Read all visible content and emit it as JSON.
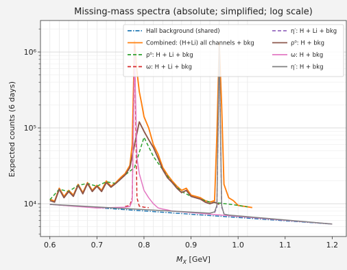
{
  "chart_data": {
    "type": "line",
    "title": "Missing-mass spectra (absolute; simplified; log scale)",
    "xlabel": "M_X [GeV]",
    "ylabel": "Expected counts (6 days)",
    "xlim": [
      0.58,
      1.23
    ],
    "ylim": [
      3700,
      2600000
    ],
    "yscale": "log",
    "grid": true,
    "legend_position": "top-right",
    "x_ticks": [
      0.6,
      0.7,
      0.8,
      0.9,
      1.0,
      1.1,
      1.2
    ],
    "x_tick_labels": [
      "0.6",
      "0.7",
      "0.8",
      "0.9",
      "1.0",
      "1.1",
      "1.2"
    ],
    "y_ticks": [
      10000,
      100000,
      1000000
    ],
    "y_tick_labels": [
      "10⁴",
      "10⁵",
      "10⁶"
    ],
    "x_grid": [
      0.6,
      0.62,
      0.64,
      0.66,
      0.68,
      0.7,
      0.72,
      0.74,
      0.76,
      0.78,
      0.8,
      0.82,
      0.84,
      0.86,
      0.88,
      0.9,
      0.92,
      0.94,
      0.96,
      0.98,
      1.0,
      1.02
    ],
    "series": [
      {
        "name": "Hall background (shared)",
        "color": "#1f77b4",
        "dash": "6,2,1.5,2",
        "x": [
          0.6,
          1.2
        ],
        "y": [
          9800,
          5400
        ]
      },
      {
        "name": "Combined: (H+Li) all channels + bkg",
        "color": "#ff7f0e",
        "dash": "",
        "x": [
          0.6,
          0.61,
          0.62,
          0.63,
          0.64,
          0.65,
          0.66,
          0.67,
          0.68,
          0.69,
          0.7,
          0.71,
          0.72,
          0.73,
          0.74,
          0.75,
          0.76,
          0.77,
          0.775,
          0.78,
          0.785,
          0.79,
          0.795,
          0.8,
          0.81,
          0.82,
          0.83,
          0.84,
          0.85,
          0.86,
          0.87,
          0.88,
          0.89,
          0.9,
          0.91,
          0.92,
          0.93,
          0.94,
          0.95,
          0.955,
          0.96,
          0.965,
          0.97,
          0.98,
          0.99,
          1.0,
          1.01,
          1.02,
          1.03
        ],
        "y": [
          11500,
          10800,
          16000,
          12500,
          15000,
          13000,
          18000,
          14000,
          19000,
          15000,
          17500,
          15000,
          20000,
          17000,
          19000,
          22000,
          25000,
          32000,
          60000,
          1400000,
          560000,
          300000,
          210000,
          140000,
          100000,
          60000,
          45000,
          30000,
          24000,
          20000,
          17000,
          15000,
          16000,
          13000,
          12500,
          12000,
          11000,
          10500,
          11000,
          80000,
          1300000,
          200000,
          18000,
          12000,
          11000,
          9500,
          9300,
          9100,
          8900
        ]
      },
      {
        "name": "ρ⁰: H + Li + bkg",
        "color": "#2ca02c",
        "dash": "5,3",
        "x": [
          0.6,
          0.62,
          0.64,
          0.66,
          0.68,
          0.7,
          0.72,
          0.74,
          0.76,
          0.78,
          0.8,
          0.82,
          0.84,
          0.86,
          0.88,
          0.9,
          0.92,
          0.94,
          0.96,
          0.98,
          1.0,
          1.02
        ],
        "y": [
          11300,
          15500,
          14500,
          17500,
          18500,
          17000,
          19500,
          18500,
          24000,
          30000,
          75000,
          42000,
          28000,
          19000,
          14500,
          12500,
          11500,
          10500,
          10200,
          9900,
          9500,
          9100
        ]
      },
      {
        "name": "ω: H + Li + bkg",
        "color": "#d62728",
        "dash": "5,3",
        "x": [
          0.76,
          0.77,
          0.775,
          0.78,
          0.785,
          0.79,
          0.8,
          0.81
        ],
        "y": [
          9200,
          9500,
          12000,
          1200000,
          12000,
          9300,
          9000,
          8900
        ]
      },
      {
        "name": "η′: H + Li + bkg",
        "color": "#9467bd",
        "dash": "5,3",
        "x": [
          0.95,
          0.955,
          0.96,
          0.965,
          0.97
        ],
        "y": [
          7600,
          9000,
          1100000,
          9000,
          7500
        ]
      },
      {
        "name": "ρ⁰: H + bkg",
        "color": "#8c564b",
        "dash": "",
        "x": [
          0.6,
          0.61,
          0.62,
          0.63,
          0.64,
          0.65,
          0.66,
          0.67,
          0.68,
          0.69,
          0.7,
          0.71,
          0.72,
          0.73,
          0.74,
          0.75,
          0.76,
          0.77,
          0.78,
          0.79,
          0.8,
          0.81,
          0.82,
          0.83,
          0.84,
          0.85,
          0.86,
          0.87,
          0.88,
          0.89,
          0.9,
          0.91,
          0.92,
          0.93,
          0.94,
          0.95,
          0.96
        ],
        "y": [
          11000,
          10500,
          15500,
          12000,
          14500,
          12500,
          17500,
          13500,
          18500,
          14500,
          17000,
          14500,
          19000,
          16500,
          18500,
          21000,
          24000,
          30000,
          60000,
          120000,
          90000,
          70000,
          55000,
          40000,
          28000,
          22000,
          19000,
          16000,
          14000,
          15000,
          12500,
          12000,
          11500,
          10500,
          10000,
          10500,
          9800
        ]
      },
      {
        "name": "ω: H + bkg",
        "color": "#e377c2",
        "dash": "",
        "x": [
          0.6,
          0.7,
          0.76,
          0.77,
          0.775,
          0.78,
          0.785,
          0.79,
          0.8,
          0.81,
          0.82,
          0.83,
          0.84,
          0.85,
          0.86,
          1.2
        ],
        "y": [
          9800,
          8800,
          9000,
          9200,
          11000,
          1000000,
          40000,
          25000,
          15000,
          12000,
          10000,
          8800,
          8500,
          8300,
          8000,
          5400
        ]
      },
      {
        "name": "η′: H + bkg",
        "color": "#7f7f7f",
        "dash": "",
        "x": [
          0.6,
          0.94,
          0.95,
          0.955,
          0.96,
          0.965,
          0.97,
          0.98,
          1.2
        ],
        "y": [
          9800,
          7500,
          7800,
          9500,
          1200000,
          9500,
          7300,
          7100,
          5400
        ]
      }
    ]
  }
}
